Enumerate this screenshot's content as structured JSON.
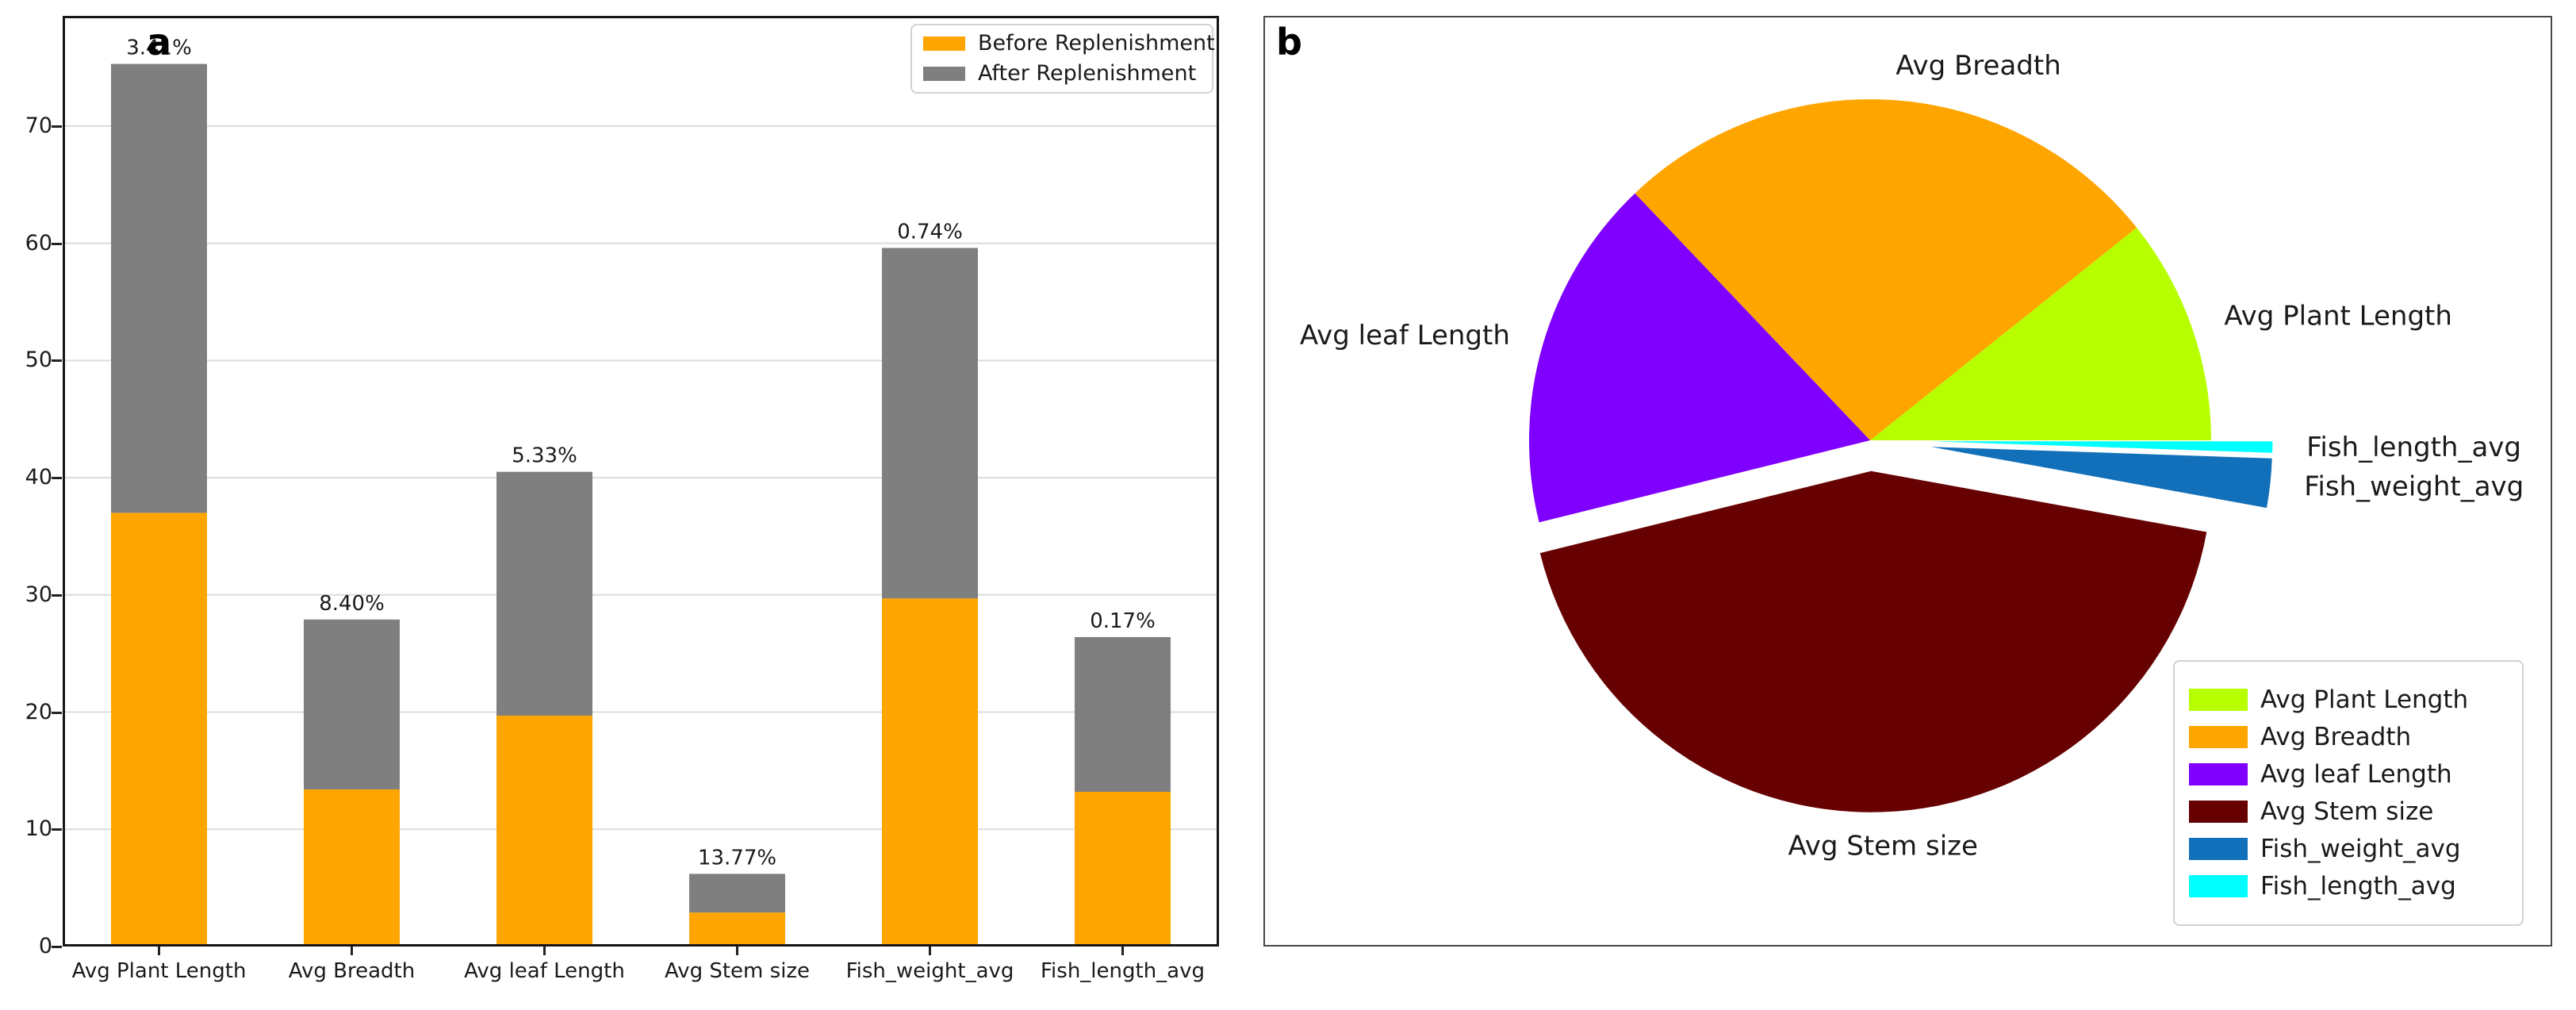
{
  "panels": {
    "a": {
      "label": "a"
    },
    "b": {
      "label": "b"
    }
  },
  "chart_data": [
    {
      "type": "bar",
      "panel": "a",
      "stacked": true,
      "categories": [
        "Avg Plant Length",
        "Avg Breadth",
        "Avg leaf Length",
        "Avg Stem size",
        "Fish_weight_avg",
        "Fish_length_avg"
      ],
      "series": [
        {
          "name": "Before Replenishment",
          "color": "#FFA500",
          "values": [
            37.0,
            13.4,
            19.7,
            2.9,
            29.7,
            13.2
          ]
        },
        {
          "name": "After Replenishment",
          "color": "#7F7F7F",
          "values": [
            38.3,
            14.5,
            20.8,
            3.3,
            29.9,
            13.2
          ]
        }
      ],
      "bar_top_labels": [
        "3.41%",
        "8.40%",
        "5.33%",
        "13.77%",
        "0.74%",
        "0.17%"
      ],
      "yticks": [
        0,
        10,
        20,
        30,
        40,
        50,
        60,
        70
      ],
      "ylim": [
        0,
        79.4
      ],
      "grid": true,
      "grid_color": "#dcdcdc",
      "legend_position": "top-right"
    },
    {
      "type": "pie",
      "panel": "b",
      "labels": [
        "Avg Plant Length",
        "Avg Breadth",
        "Avg leaf Length",
        "Avg Stem size",
        "Fish_weight_avg",
        "Fish_length_avg"
      ],
      "values": [
        3.41,
        8.4,
        5.33,
        13.77,
        0.74,
        0.17
      ],
      "colors": [
        "#B7FF00",
        "#FFA500",
        "#7F00FF",
        "#670101",
        "#1170B9",
        "#00FFFF"
      ],
      "explode": [
        0,
        0,
        0,
        0.09,
        0.18,
        0.18
      ],
      "startangle": 0,
      "counterclockwise": true,
      "labeldistance": 1.1,
      "legend_position": "lower-right"
    }
  ]
}
